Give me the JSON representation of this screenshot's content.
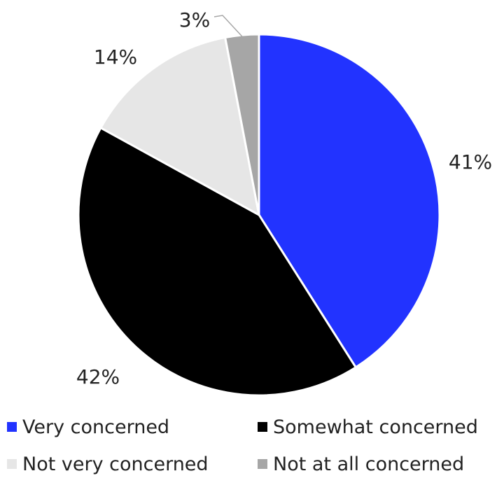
{
  "chart_data": {
    "type": "pie",
    "title": "",
    "slices": [
      {
        "label": "Very concerned",
        "value": 41,
        "display": "41%",
        "color": "#2233ff"
      },
      {
        "label": "Somewhat concerned",
        "value": 42,
        "display": "42%",
        "color": "#000000"
      },
      {
        "label": "Not very concerned",
        "value": 14,
        "display": "14%",
        "color": "#e6e6e6"
      },
      {
        "label": "Not at all concerned",
        "value": 3,
        "display": "3%",
        "color": "#a6a6a6"
      }
    ],
    "legend_position": "bottom"
  }
}
